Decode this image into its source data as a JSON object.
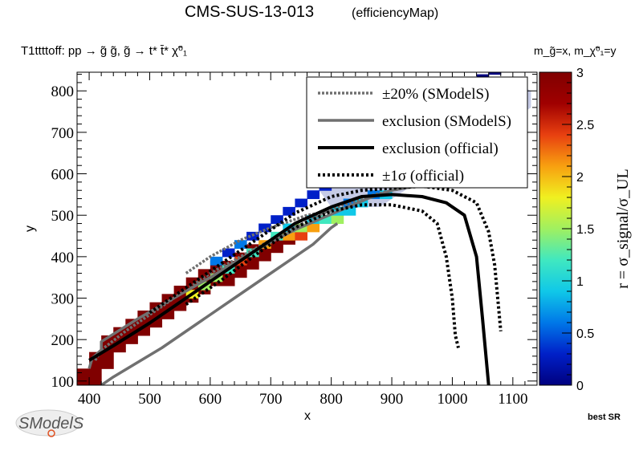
{
  "header": {
    "title": "CMS-SUS-13-013",
    "subtitle": "(efficiencyMap)",
    "process": "T1ttttoff: pp → g̃ g̃, g̃ → t* t̄* χ̃⁰₁",
    "mass_def": "m_g̃=x, m_χ̃⁰₁=y",
    "best_sr": "best SR",
    "logo_text": "SModelS"
  },
  "chart_data": {
    "type": "heatmap",
    "xlabel": "x",
    "ylabel": "y",
    "zlabel": "r = σ_signal/σ_UL",
    "xlim": [
      380,
      1140
    ],
    "ylim": [
      90,
      845
    ],
    "zlim": [
      0,
      3
    ],
    "x_ticks": [
      400,
      500,
      600,
      700,
      800,
      900,
      1000,
      1100
    ],
    "y_ticks": [
      100,
      200,
      300,
      400,
      500,
      600,
      700,
      800
    ],
    "z_ticks": [
      "0",
      "0.5",
      "1",
      "1.5",
      "2",
      "2.5",
      "3"
    ],
    "colorscale": [
      "#00007f",
      "#0020c8",
      "#0078e8",
      "#10c8e8",
      "#40e8c0",
      "#a0f060",
      "#f0f020",
      "#f8a010",
      "#e84010",
      "#a00000",
      "#800000"
    ],
    "cell_size": [
      20,
      20
    ],
    "strips": [
      {
        "x0": 380,
        "x1": 420,
        "y0": 90,
        "y1": 130,
        "r": 3.0
      },
      {
        "x0": 400,
        "x1": 440,
        "y0": 130,
        "y1": 170,
        "r": 3.0
      },
      {
        "x0": 420,
        "x1": 460,
        "y0": 170,
        "y1": 190,
        "r": 3.0
      },
      {
        "x0": 420,
        "x1": 480,
        "y0": 190,
        "y1": 210,
        "r": 3.0
      },
      {
        "x0": 440,
        "x1": 500,
        "y0": 210,
        "y1": 230,
        "r": 3.0
      },
      {
        "x0": 460,
        "x1": 520,
        "y0": 230,
        "y1": 250,
        "r": 3.0
      },
      {
        "x0": 480,
        "x1": 540,
        "y0": 250,
        "y1": 270,
        "r": 3.0
      },
      {
        "x0": 500,
        "x1": 560,
        "y0": 270,
        "y1": 290,
        "r": 3.0
      },
      {
        "x0": 520,
        "x1": 580,
        "y0": 290,
        "y1": 310,
        "r": 3.0
      },
      {
        "x0": 540,
        "x1": 600,
        "y0": 310,
        "y1": 330,
        "r": 3.0
      },
      {
        "x0": 560,
        "x1": 640,
        "y0": 330,
        "y1": 350,
        "r": 3.0
      },
      {
        "x0": 580,
        "x1": 660,
        "y0": 350,
        "y1": 370,
        "r": 3.0
      },
      {
        "x0": 600,
        "x1": 680,
        "y0": 370,
        "y1": 390,
        "r": 3.0
      },
      {
        "x0": 640,
        "x1": 700,
        "y0": 390,
        "y1": 410,
        "r": 3.0
      },
      {
        "x0": 660,
        "x1": 720,
        "y0": 410,
        "y1": 430,
        "r": 3.0
      },
      {
        "x0": 700,
        "x1": 740,
        "y0": 430,
        "y1": 450,
        "r": 3.0
      }
    ],
    "cells": [
      {
        "x": 560,
        "y": 300,
        "r": 1.8
      },
      {
        "x": 580,
        "y": 320,
        "r": 1.4
      },
      {
        "x": 600,
        "y": 340,
        "r": 1.6
      },
      {
        "x": 620,
        "y": 360,
        "r": 1.2
      },
      {
        "x": 640,
        "y": 380,
        "r": 2.4
      },
      {
        "x": 660,
        "y": 400,
        "r": 1.3
      },
      {
        "x": 680,
        "y": 420,
        "r": 2.2
      },
      {
        "x": 700,
        "y": 440,
        "r": 1.1
      },
      {
        "x": 720,
        "y": 440,
        "r": 2.0
      },
      {
        "x": 740,
        "y": 440,
        "r": 2.3
      },
      {
        "x": 720,
        "y": 460,
        "r": 0.9
      },
      {
        "x": 740,
        "y": 460,
        "r": 1.5
      },
      {
        "x": 760,
        "y": 460,
        "r": 2.0
      },
      {
        "x": 760,
        "y": 480,
        "r": 1.0
      },
      {
        "x": 780,
        "y": 480,
        "r": 1.2
      },
      {
        "x": 800,
        "y": 480,
        "r": 1.4
      },
      {
        "x": 800,
        "y": 500,
        "r": 0.8
      },
      {
        "x": 820,
        "y": 500,
        "r": 1.0
      },
      {
        "x": 820,
        "y": 520,
        "r": 0.6
      },
      {
        "x": 840,
        "y": 520,
        "r": 0.9
      },
      {
        "x": 860,
        "y": 540,
        "r": 0.7
      },
      {
        "x": 880,
        "y": 540,
        "r": 0.8
      },
      {
        "x": 600,
        "y": 380,
        "r": 0.7
      },
      {
        "x": 620,
        "y": 400,
        "r": 0.4
      },
      {
        "x": 640,
        "y": 420,
        "r": 0.5
      },
      {
        "x": 660,
        "y": 440,
        "r": 0.3
      },
      {
        "x": 680,
        "y": 460,
        "r": 0.4
      },
      {
        "x": 700,
        "y": 480,
        "r": 0.3
      },
      {
        "x": 720,
        "y": 500,
        "r": 0.3
      },
      {
        "x": 740,
        "y": 520,
        "r": 0.3
      },
      {
        "x": 760,
        "y": 540,
        "r": 0.3
      },
      {
        "x": 780,
        "y": 560,
        "r": 0.3
      },
      {
        "x": 800,
        "y": 580,
        "r": 0.2
      },
      {
        "x": 820,
        "y": 600,
        "r": 0.2
      },
      {
        "x": 840,
        "y": 620,
        "r": 0.2
      },
      {
        "x": 860,
        "y": 640,
        "r": 0.1
      },
      {
        "x": 880,
        "y": 660,
        "r": 0.1
      },
      {
        "x": 900,
        "y": 680,
        "r": 0.1
      },
      {
        "x": 920,
        "y": 700,
        "r": 0.1
      },
      {
        "x": 940,
        "y": 720,
        "r": 0.1
      },
      {
        "x": 960,
        "y": 740,
        "r": 0.1
      },
      {
        "x": 980,
        "y": 760,
        "r": 0.1
      },
      {
        "x": 1000,
        "y": 780,
        "r": 0.1
      },
      {
        "x": 1020,
        "y": 800,
        "r": 0.1
      },
      {
        "x": 1040,
        "y": 820,
        "r": 0.05
      },
      {
        "x": 1060,
        "y": 840,
        "r": 0.0
      }
    ],
    "faded_band": [
      [
        780,
        560
      ],
      [
        1100,
        820
      ],
      [
        1130,
        800
      ],
      [
        1130,
        760
      ],
      [
        1110,
        740
      ],
      [
        880,
        520
      ],
      [
        800,
        520
      ]
    ],
    "series": [
      {
        "name": "±20% (SModelS)",
        "style": "dotted-gray",
        "points": [
          [
            410,
            150
          ],
          [
            420,
            175
          ],
          [
            460,
            220
          ],
          [
            520,
            280
          ],
          [
            560,
            320
          ],
          [
            600,
            360
          ],
          [
            650,
            400
          ],
          [
            700,
            440
          ],
          [
            740,
            470
          ],
          [
            780,
            500
          ],
          [
            820,
            525
          ],
          [
            860,
            545
          ],
          [
            900,
            560
          ],
          [
            940,
            570
          ],
          [
            980,
            575
          ],
          [
            1010,
            580
          ]
        ]
      },
      {
        "name": "±20% (SModelS)",
        "style": "dotted-gray",
        "points": [
          [
            560,
            360
          ],
          [
            600,
            400
          ],
          [
            650,
            440
          ],
          [
            700,
            470
          ],
          [
            760,
            500
          ],
          [
            800,
            510
          ]
        ]
      },
      {
        "name": "exclusion (SModelS)",
        "style": "solid-gray",
        "points": [
          [
            400,
            130
          ],
          [
            405,
            155
          ],
          [
            420,
            175
          ],
          [
            420,
            195
          ],
          [
            480,
            250
          ],
          [
            540,
            300
          ],
          [
            600,
            350
          ],
          [
            650,
            395
          ],
          [
            700,
            435
          ],
          [
            740,
            465
          ],
          [
            780,
            490
          ],
          [
            820,
            515
          ],
          [
            860,
            540
          ],
          [
            900,
            560
          ],
          [
            940,
            570
          ],
          [
            960,
            568
          ]
        ]
      },
      {
        "name": "exclusion (SModelS)",
        "style": "solid-gray",
        "points": [
          [
            420,
            90
          ],
          [
            440,
            110
          ],
          [
            520,
            180
          ],
          [
            580,
            240
          ],
          [
            640,
            300
          ],
          [
            700,
            360
          ],
          [
            740,
            400
          ],
          [
            770,
            430
          ],
          [
            800,
            470
          ],
          [
            810,
            480
          ]
        ]
      },
      {
        "name": "exclusion (official)",
        "style": "solid-black",
        "points": [
          [
            400,
            150
          ],
          [
            440,
            185
          ],
          [
            500,
            240
          ],
          [
            560,
            300
          ],
          [
            620,
            360
          ],
          [
            680,
            420
          ],
          [
            740,
            480
          ],
          [
            800,
            520
          ],
          [
            850,
            545
          ],
          [
            900,
            550
          ],
          [
            950,
            545
          ],
          [
            990,
            530
          ],
          [
            1020,
            500
          ],
          [
            1040,
            400
          ],
          [
            1050,
            250
          ],
          [
            1060,
            90
          ]
        ]
      },
      {
        "name": "±1σ (official)",
        "style": "dotted-black",
        "points": [
          [
            500,
            265
          ],
          [
            560,
            325
          ],
          [
            620,
            385
          ],
          [
            680,
            445
          ],
          [
            740,
            505
          ],
          [
            800,
            545
          ],
          [
            850,
            560
          ],
          [
            900,
            565
          ],
          [
            950,
            570
          ],
          [
            1000,
            560
          ],
          [
            1040,
            530
          ],
          [
            1060,
            460
          ],
          [
            1070,
            380
          ],
          [
            1080,
            220
          ]
        ]
      },
      {
        "name": "±1σ (official)",
        "style": "dotted-black",
        "points": [
          [
            560,
            285
          ],
          [
            620,
            345
          ],
          [
            680,
            410
          ],
          [
            740,
            470
          ],
          [
            800,
            510
          ],
          [
            850,
            525
          ],
          [
            900,
            525
          ],
          [
            950,
            510
          ],
          [
            975,
            480
          ],
          [
            990,
            400
          ],
          [
            1000,
            300
          ],
          [
            1005,
            210
          ],
          [
            1010,
            180
          ]
        ]
      }
    ],
    "legend": {
      "position": "top-right",
      "entries": [
        {
          "label": "±20% (SModelS)",
          "style": "dotted-gray"
        },
        {
          "label": "exclusion (SModelS)",
          "style": "solid-gray"
        },
        {
          "label": "exclusion (official)",
          "style": "solid-black"
        },
        {
          "label": "±1σ (official)",
          "style": "dotted-black"
        }
      ]
    }
  }
}
